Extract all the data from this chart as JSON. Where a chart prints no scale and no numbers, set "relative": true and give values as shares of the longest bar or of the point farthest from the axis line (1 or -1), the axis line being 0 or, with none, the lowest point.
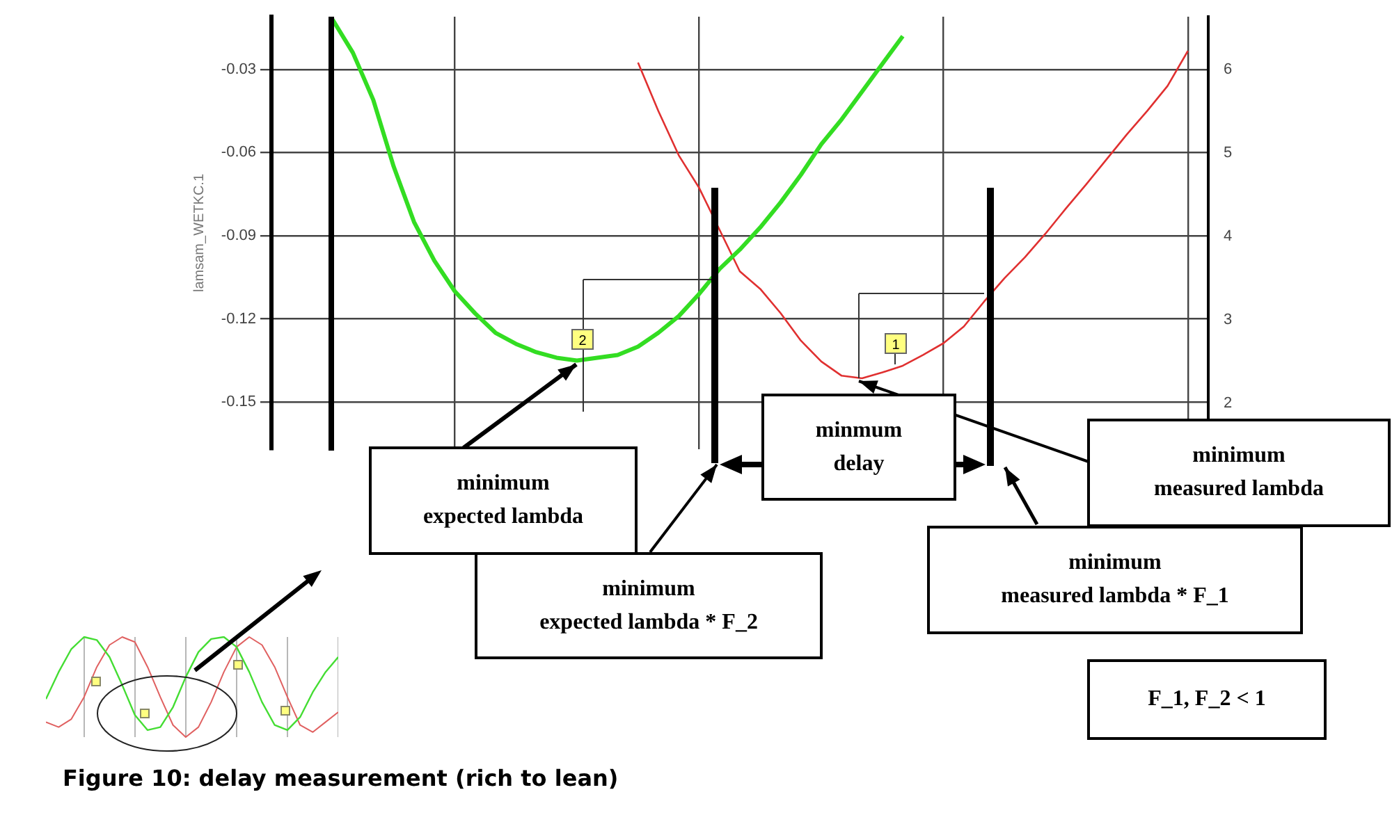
{
  "chart_data": [
    {
      "type": "line",
      "ylabel": "lamsam_WETKC.1",
      "categories": [
        null,
        null,
        null,
        null,
        null,
        null,
        null,
        null,
        null,
        null,
        null,
        null,
        null,
        null,
        null,
        null,
        null,
        null,
        null,
        null,
        null,
        null,
        null,
        null,
        null,
        null,
        null,
        null,
        null,
        null,
        null,
        null,
        null,
        null,
        null,
        null,
        null,
        null,
        null,
        null,
        null,
        null,
        null,
        null,
        null,
        null,
        null
      ],
      "series": [
        {
          "color": "#33dd22",
          "values": [
            null,
            null,
            null,
            -0.012,
            -0.024,
            -0.041,
            -0.065,
            -0.085,
            -0.099,
            -0.11,
            -0.118,
            -0.125,
            -0.129,
            -0.132,
            -0.134,
            -0.135,
            -0.134,
            -0.133,
            -0.13,
            -0.125,
            -0.119,
            -0.111,
            -0.102,
            -0.095,
            -0.087,
            -0.078,
            -0.068,
            -0.057,
            -0.048,
            -0.038,
            -0.028,
            -0.018,
            null,
            null,
            null,
            null,
            null,
            null,
            null,
            null,
            null,
            null,
            null,
            null,
            null,
            null,
            null
          ]
        },
        {
          "color": "#e03030",
          "axis": "y2",
          "values": [
            null,
            null,
            null,
            null,
            null,
            null,
            null,
            null,
            null,
            null,
            null,
            null,
            null,
            null,
            null,
            null,
            null,
            null,
            6.08,
            5.5,
            4.97,
            4.58,
            4.08,
            3.58,
            3.37,
            3.08,
            2.75,
            2.5,
            2.33,
            2.3,
            2.37,
            2.45,
            2.58,
            2.72,
            2.92,
            3.22,
            3.5,
            3.75,
            4.03,
            4.33,
            4.62,
            4.92,
            5.22,
            5.5,
            5.8,
            6.22,
            null
          ]
        }
      ],
      "ylim": [
        -0.167,
        -0.011
      ],
      "yticks": [
        -0.15,
        -0.12,
        -0.09,
        -0.06,
        -0.03
      ],
      "y2lim": [
        1.45,
        6.63
      ],
      "y2ticks": [
        2,
        3,
        4,
        5,
        6
      ],
      "grid": true,
      "marker": "none",
      "line_style": "solid",
      "annotations": [
        "2",
        "1",
        "minimum expected lambda",
        "minimum expected lambda * F_2",
        "minmum delay",
        "minimum measured lambda",
        "minimum measured lambda * F_1",
        "F_1, F_2 < 1",
        "Figure 10: delay measurement (rich to lean)"
      ]
    },
    {
      "type": "line",
      "relative": true,
      "categories": [
        null,
        null,
        null,
        null,
        null,
        null,
        null,
        null,
        null,
        null,
        null,
        null,
        null,
        null,
        null,
        null,
        null,
        null,
        null,
        null,
        null,
        null,
        null,
        null
      ],
      "series": [
        {
          "color": "#44dd33",
          "values": [
            0.38,
            0.65,
            0.88,
            1.0,
            0.97,
            0.8,
            0.52,
            0.22,
            0.07,
            0.1,
            0.3,
            0.6,
            0.85,
            0.98,
            1.0,
            0.9,
            0.65,
            0.35,
            0.12,
            0.07,
            0.2,
            0.45,
            0.65,
            0.8
          ]
        },
        {
          "color": "#e06060",
          "values": [
            0.15,
            0.1,
            0.18,
            0.4,
            0.7,
            0.92,
            1.0,
            0.95,
            0.7,
            0.4,
            0.12,
            0.0,
            0.1,
            0.35,
            0.65,
            0.9,
            1.0,
            0.92,
            0.7,
            0.4,
            0.12,
            0.05,
            0.15,
            0.25
          ]
        }
      ],
      "grid": "x",
      "marker": "none",
      "line_style": "solid"
    }
  ]
}
